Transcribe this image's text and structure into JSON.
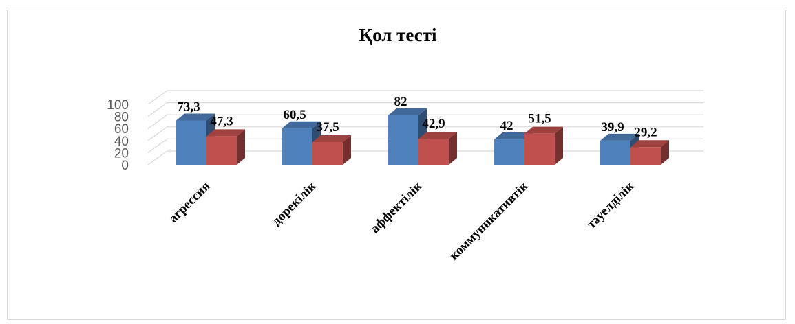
{
  "chart_data": {
    "type": "bar",
    "title": "Қол  тесті",
    "categories": [
      "агрессия",
      "дөрекілік",
      "аффектілік",
      "коммуникативтік",
      "тәуелділік"
    ],
    "series": [
      {
        "values": [
          73.3,
          60.5,
          82,
          42,
          39.9
        ],
        "labels": [
          "73,3",
          "60,5",
          "82",
          "42",
          "39,9"
        ],
        "color": "#4f81bd"
      },
      {
        "values": [
          47.3,
          37.5,
          42.9,
          51.5,
          29.2
        ],
        "labels": [
          "47,3",
          "37,5",
          "42,9",
          "51,5",
          "29,2"
        ],
        "color": "#c0504d"
      }
    ],
    "yticks": [
      0,
      20,
      40,
      60,
      80,
      100
    ],
    "ylim": [
      0,
      100
    ],
    "xlabel": "",
    "ylabel": "",
    "grid": true,
    "legend": "none",
    "style": "3d-clustered-column"
  }
}
